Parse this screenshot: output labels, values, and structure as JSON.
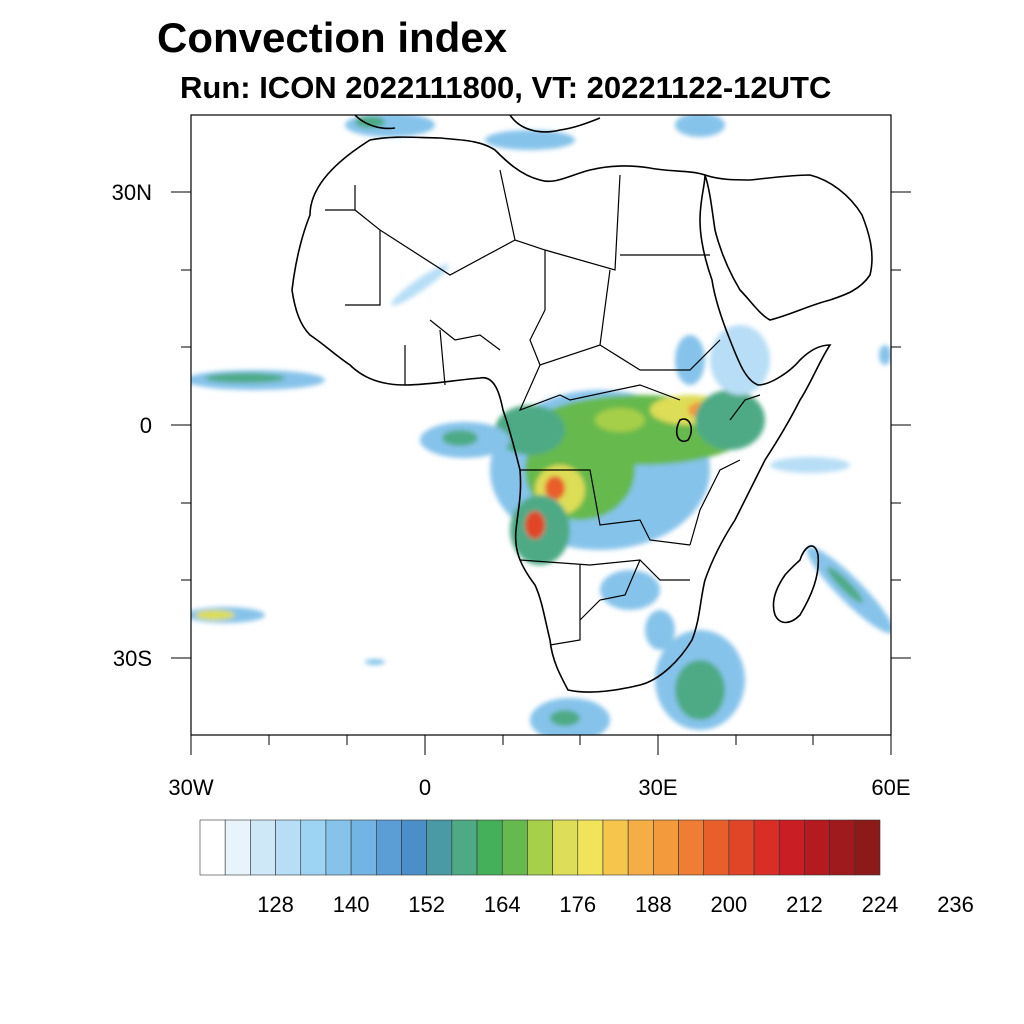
{
  "title": "Convection index",
  "subtitle": "Run: ICON 2022111800,  VT: 20221122-12UTC",
  "map": {
    "lat_labels": [
      "30N",
      "0",
      "30S"
    ],
    "lon_labels": [
      "30W",
      "0",
      "30E",
      "60E"
    ],
    "extent": {
      "lon": [
        -30,
        60
      ],
      "lat": [
        -40,
        40
      ]
    }
  },
  "colorbar": {
    "colors": [
      "#ffffff",
      "#e8f4fc",
      "#cfe8f8",
      "#b7def6",
      "#9dd3f3",
      "#86c3ea",
      "#72b4e3",
      "#5b9ed6",
      "#4b8fc9",
      "#4a9aa6",
      "#4daa85",
      "#44b05a",
      "#66b94d",
      "#a6cf4a",
      "#dddd57",
      "#f2e45a",
      "#f5c64b",
      "#f4ae45",
      "#f39a3c",
      "#ef7d33",
      "#e85f2c",
      "#e14528",
      "#d92e26",
      "#c91e23",
      "#b51a21",
      "#9e1a1c",
      "#8c1a19"
    ],
    "tick_labels": [
      "128",
      "140",
      "152",
      "164",
      "176",
      "188",
      "200",
      "212",
      "224",
      "236"
    ]
  }
}
